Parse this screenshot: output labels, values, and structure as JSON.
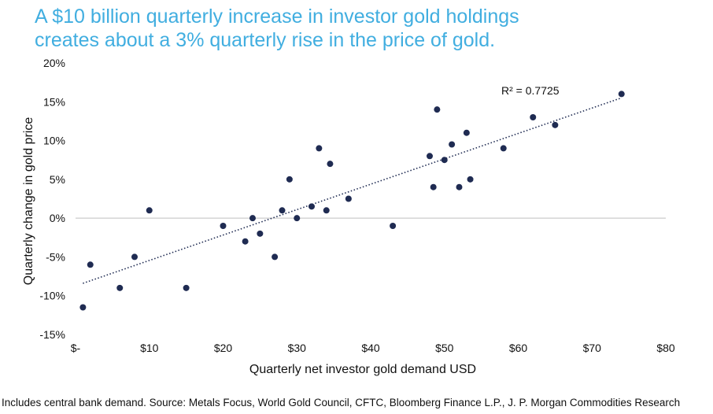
{
  "title_lines": [
    "A $10 billion quarterly increase in investor gold holdings",
    "creates about a 3% quarterly rise in the price of gold."
  ],
  "footnote": "Includes central bank demand. Source:  Metals Focus, World Gold Council, CFTC, Bloomberg Finance L.P., J. P. Morgan Commodities Research",
  "colors": {
    "title": "#41aee0",
    "points": "#1f2b52",
    "trend": "#1f2b52",
    "zero_line": "#bfbfbf"
  },
  "chart_data": {
    "type": "scatter",
    "xlabel": "Quarterly net investor gold demand USD",
    "ylabel": "Quarterly change in gold price",
    "xlim": [
      0,
      80
    ],
    "ylim": [
      -15,
      20
    ],
    "x_ticks": [
      {
        "value": 0,
        "label": "$-"
      },
      {
        "value": 10,
        "label": "$10"
      },
      {
        "value": 20,
        "label": "$20"
      },
      {
        "value": 30,
        "label": "$30"
      },
      {
        "value": 40,
        "label": "$40"
      },
      {
        "value": 50,
        "label": "$50"
      },
      {
        "value": 60,
        "label": "$60"
      },
      {
        "value": 70,
        "label": "$70"
      },
      {
        "value": 80,
        "label": "$80"
      }
    ],
    "y_ticks": [
      {
        "value": -15,
        "label": "-15%"
      },
      {
        "value": -10,
        "label": "-10%"
      },
      {
        "value": -5,
        "label": "-5%"
      },
      {
        "value": 0,
        "label": "0%"
      },
      {
        "value": 5,
        "label": "5%"
      },
      {
        "value": 10,
        "label": "10%"
      },
      {
        "value": 15,
        "label": "15%"
      },
      {
        "value": 20,
        "label": "20%"
      }
    ],
    "points": [
      {
        "x": 1,
        "y": -11.5
      },
      {
        "x": 2,
        "y": -6
      },
      {
        "x": 6,
        "y": -9
      },
      {
        "x": 8,
        "y": -5
      },
      {
        "x": 10,
        "y": 1
      },
      {
        "x": 15,
        "y": -9
      },
      {
        "x": 20,
        "y": -1
      },
      {
        "x": 23,
        "y": -3
      },
      {
        "x": 24,
        "y": 0
      },
      {
        "x": 25,
        "y": -2
      },
      {
        "x": 27,
        "y": -5
      },
      {
        "x": 28,
        "y": 1
      },
      {
        "x": 29,
        "y": 5
      },
      {
        "x": 30,
        "y": 0
      },
      {
        "x": 32,
        "y": 1.5
      },
      {
        "x": 33,
        "y": 9
      },
      {
        "x": 34,
        "y": 1
      },
      {
        "x": 34.5,
        "y": 7
      },
      {
        "x": 37,
        "y": 2.5
      },
      {
        "x": 43,
        "y": -1
      },
      {
        "x": 48,
        "y": 8
      },
      {
        "x": 48.5,
        "y": 4
      },
      {
        "x": 49,
        "y": 14
      },
      {
        "x": 50,
        "y": 7.5
      },
      {
        "x": 51,
        "y": 9.5
      },
      {
        "x": 52,
        "y": 4
      },
      {
        "x": 53,
        "y": 11
      },
      {
        "x": 53.5,
        "y": 5
      },
      {
        "x": 58,
        "y": 9
      },
      {
        "x": 62,
        "y": 13
      },
      {
        "x": 65,
        "y": 12
      },
      {
        "x": 74,
        "y": 16
      }
    ],
    "trendline": {
      "type": "linear",
      "x": [
        1,
        74
      ],
      "y": [
        -8.4,
        15.5
      ]
    },
    "annotation": "R² = 0.7725"
  }
}
